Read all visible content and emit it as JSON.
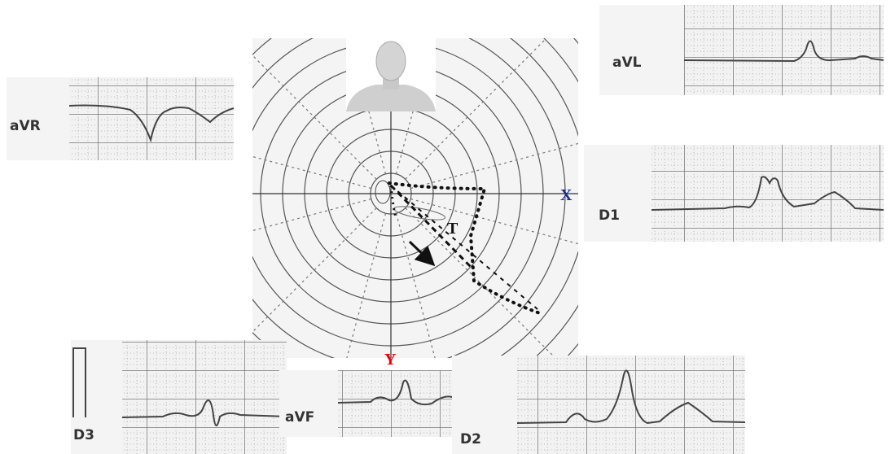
{
  "leads": [
    {
      "label": "aVR"
    },
    {
      "label": "aVL"
    },
    {
      "label": "D1"
    },
    {
      "label": "D3"
    },
    {
      "label": "aVF"
    },
    {
      "label": "D2"
    }
  ],
  "axes": {
    "x": "X",
    "y": "Y"
  },
  "loop_label": "T"
}
